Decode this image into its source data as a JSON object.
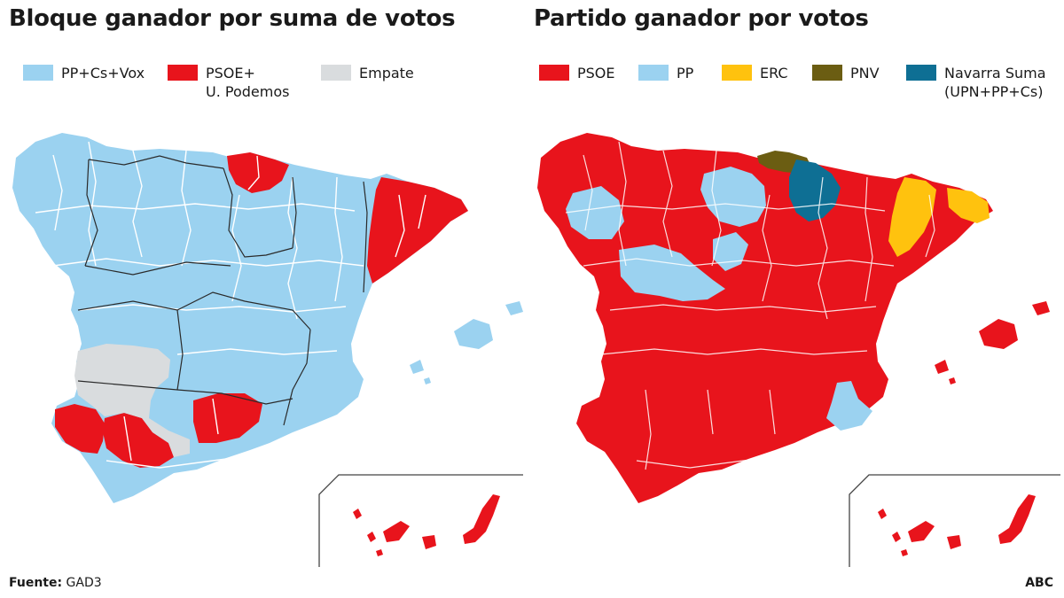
{
  "colors": {
    "light_blue": "#9bd2f0",
    "red": "#e8141c",
    "grey": "#d9dcde",
    "yellow": "#ffc20e",
    "olive": "#6b5d12",
    "dark_blue": "#0e6f94",
    "sea": "#ffffff"
  },
  "left_map": {
    "title": "Bloque ganador por suma de votos",
    "legend": [
      {
        "lines": [
          "PP+Cs+Vox"
        ],
        "color": "#9bd2f0"
      },
      {
        "lines": [
          "PSOE+",
          "U. Podemos"
        ],
        "color": "#e8141c"
      },
      {
        "lines": [
          "Empate"
        ],
        "color": "#d9dcde"
      }
    ]
  },
  "right_map": {
    "title": "Partido ganador por votos",
    "legend": [
      {
        "lines": [
          "PSOE"
        ],
        "color": "#e8141c"
      },
      {
        "lines": [
          "PP"
        ],
        "color": "#9bd2f0"
      },
      {
        "lines": [
          "ERC"
        ],
        "color": "#ffc20e"
      },
      {
        "lines": [
          "PNV"
        ],
        "color": "#6b5d12"
      },
      {
        "lines": [
          "Navarra Suma",
          "(UPN+PP+Cs)"
        ],
        "color": "#0e6f94"
      }
    ]
  },
  "footer": {
    "source_label": "Fuente:",
    "source_value": "GAD3",
    "brand": "ABC"
  }
}
